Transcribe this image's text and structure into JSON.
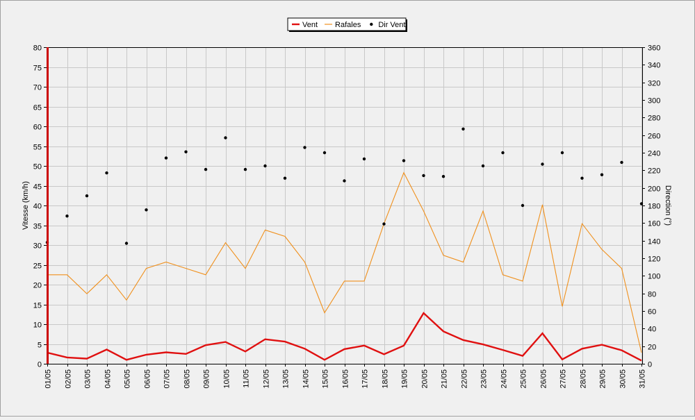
{
  "chart_data": {
    "type": "line",
    "x": [
      "01/05",
      "02/05",
      "03/05",
      "04/05",
      "05/05",
      "06/05",
      "07/05",
      "08/05",
      "09/05",
      "10/05",
      "11/05",
      "12/05",
      "13/05",
      "14/05",
      "15/05",
      "16/05",
      "17/05",
      "18/05",
      "19/05",
      "20/05",
      "21/05",
      "22/05",
      "23/05",
      "24/05",
      "25/05",
      "26/05",
      "27/05",
      "28/05",
      "29/05",
      "30/05",
      "31/05"
    ],
    "y_left": {
      "label": "Vitesse (km/h)",
      "ylim": [
        0,
        80
      ],
      "ticks": [
        0,
        5,
        10,
        15,
        20,
        25,
        30,
        35,
        40,
        45,
        50,
        55,
        60,
        65,
        70,
        75,
        80
      ]
    },
    "y_right": {
      "label": "Direction (°)",
      "ylim": [
        0,
        360
      ],
      "ticks": [
        0,
        20,
        40,
        60,
        80,
        100,
        120,
        140,
        160,
        180,
        200,
        220,
        240,
        260,
        280,
        300,
        320,
        340,
        360
      ]
    },
    "grid": true,
    "legend_position": "top-center",
    "series": [
      {
        "name": "Vent",
        "axis": "left",
        "kind": "line",
        "color": "#e01010",
        "values": [
          2.8,
          1.6,
          1.3,
          3.6,
          1.0,
          2.3,
          2.9,
          2.5,
          4.7,
          5.5,
          3.1,
          6.2,
          5.6,
          3.8,
          1.0,
          3.7,
          4.6,
          2.4,
          4.6,
          12.8,
          8.2,
          6.0,
          4.9,
          3.5,
          2.0,
          7.7,
          1.1,
          3.8,
          4.8,
          3.4,
          0.8
        ]
      },
      {
        "name": "Rafales",
        "axis": "left",
        "kind": "line",
        "color": "#f0901c",
        "values": [
          22.5,
          22.5,
          17.7,
          22.5,
          16.1,
          24.1,
          25.7,
          24.1,
          22.5,
          30.6,
          24.1,
          33.8,
          32.2,
          25.7,
          12.9,
          20.9,
          20.9,
          35.4,
          48.3,
          38.6,
          27.4,
          25.7,
          38.6,
          22.5,
          20.9,
          40.2,
          14.5,
          35.4,
          28.9,
          24.1,
          2.8
        ]
      },
      {
        "name": "Dir Vent",
        "axis": "right",
        "kind": "points",
        "color": "#000000",
        "values": [
          138,
          168,
          191,
          217,
          137,
          175,
          234,
          241,
          221,
          257,
          221,
          225,
          211,
          246,
          240,
          208,
          233,
          159,
          231,
          214,
          213,
          267,
          225,
          240,
          180,
          227,
          240,
          211,
          215,
          229,
          182
        ]
      }
    ]
  }
}
